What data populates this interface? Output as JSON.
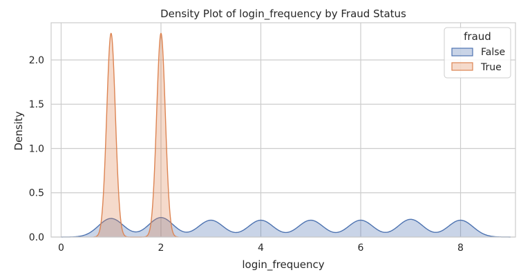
{
  "chart_data": {
    "type": "area",
    "title": "Density Plot of login_frequency by Fraud Status",
    "xlabel": "login_frequency",
    "ylabel": "Density",
    "xlim": [
      -0.2,
      9.1
    ],
    "ylim": [
      0,
      2.42
    ],
    "xticks": [
      0,
      2,
      4,
      6,
      8
    ],
    "xtick_labels": [
      "0",
      "2",
      "4",
      "6",
      "8"
    ],
    "yticks": [
      0.0,
      0.5,
      1.0,
      1.5,
      2.0
    ],
    "ytick_labels": [
      "0.0",
      "0.5",
      "1.0",
      "1.5",
      "2.0"
    ],
    "grid": true,
    "legend": {
      "title": "fraud",
      "position": "top-right"
    },
    "series": [
      {
        "name": "False",
        "color": "#4c72b0",
        "fill_opacity": 0.3,
        "kind": "kde",
        "peaks": [
          1,
          2,
          3,
          4,
          5,
          6,
          7,
          8
        ],
        "peak_heights": [
          0.21,
          0.22,
          0.19,
          0.19,
          0.19,
          0.19,
          0.2,
          0.19
        ],
        "bandwidth": 0.25
      },
      {
        "name": "True",
        "color": "#dd8452",
        "fill_opacity": 0.3,
        "kind": "kde",
        "peaks": [
          1,
          2
        ],
        "peak_heights": [
          2.3,
          2.3
        ],
        "bandwidth": 0.087
      }
    ]
  }
}
